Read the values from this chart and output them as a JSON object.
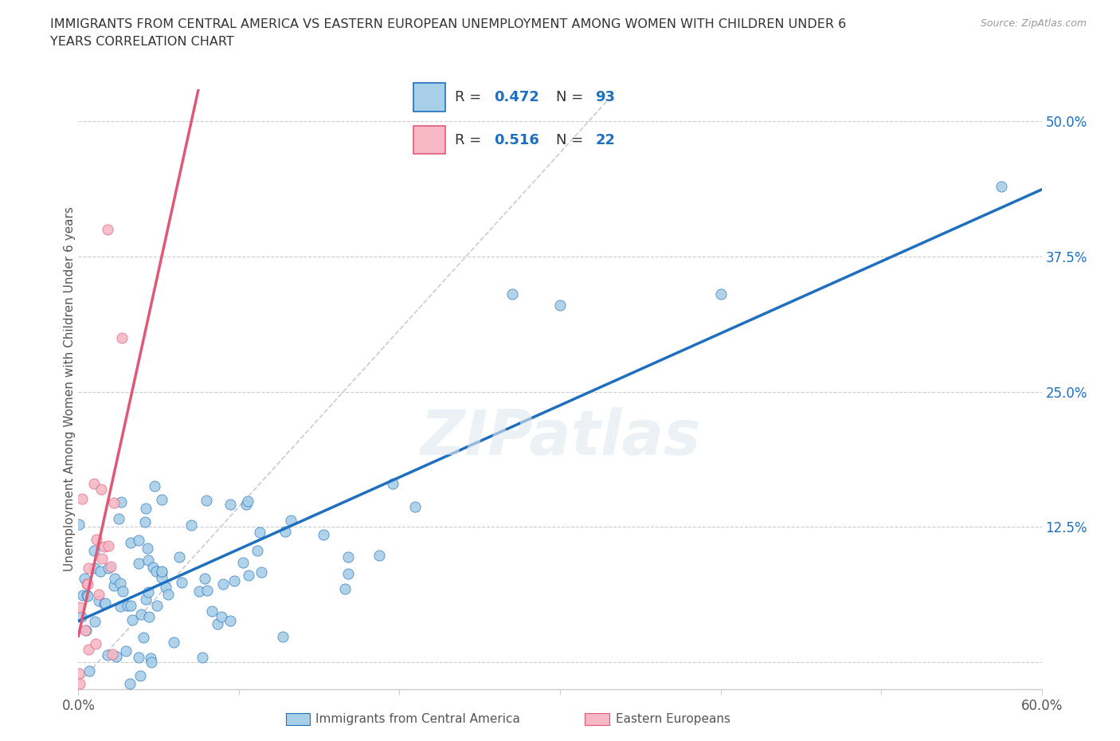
{
  "title_line1": "IMMIGRANTS FROM CENTRAL AMERICA VS EASTERN EUROPEAN UNEMPLOYMENT AMONG WOMEN WITH CHILDREN UNDER 6",
  "title_line2": "YEARS CORRELATION CHART",
  "source": "Source: ZipAtlas.com",
  "ylabel": "Unemployment Among Women with Children Under 6 years",
  "xlim": [
    0.0,
    0.6
  ],
  "ylim": [
    -0.025,
    0.53
  ],
  "blue_color": "#a8cfe8",
  "pink_color": "#f5b8c4",
  "blue_line_color": "#1f6fbf",
  "pink_line_color": "#e05878",
  "gray_dashed_color": "#d0d0d0",
  "R_blue": 0.472,
  "N_blue": 93,
  "R_pink": 0.516,
  "N_pink": 22,
  "watermark": "ZIPatlas",
  "blue_seed": 7,
  "pink_seed": 3
}
